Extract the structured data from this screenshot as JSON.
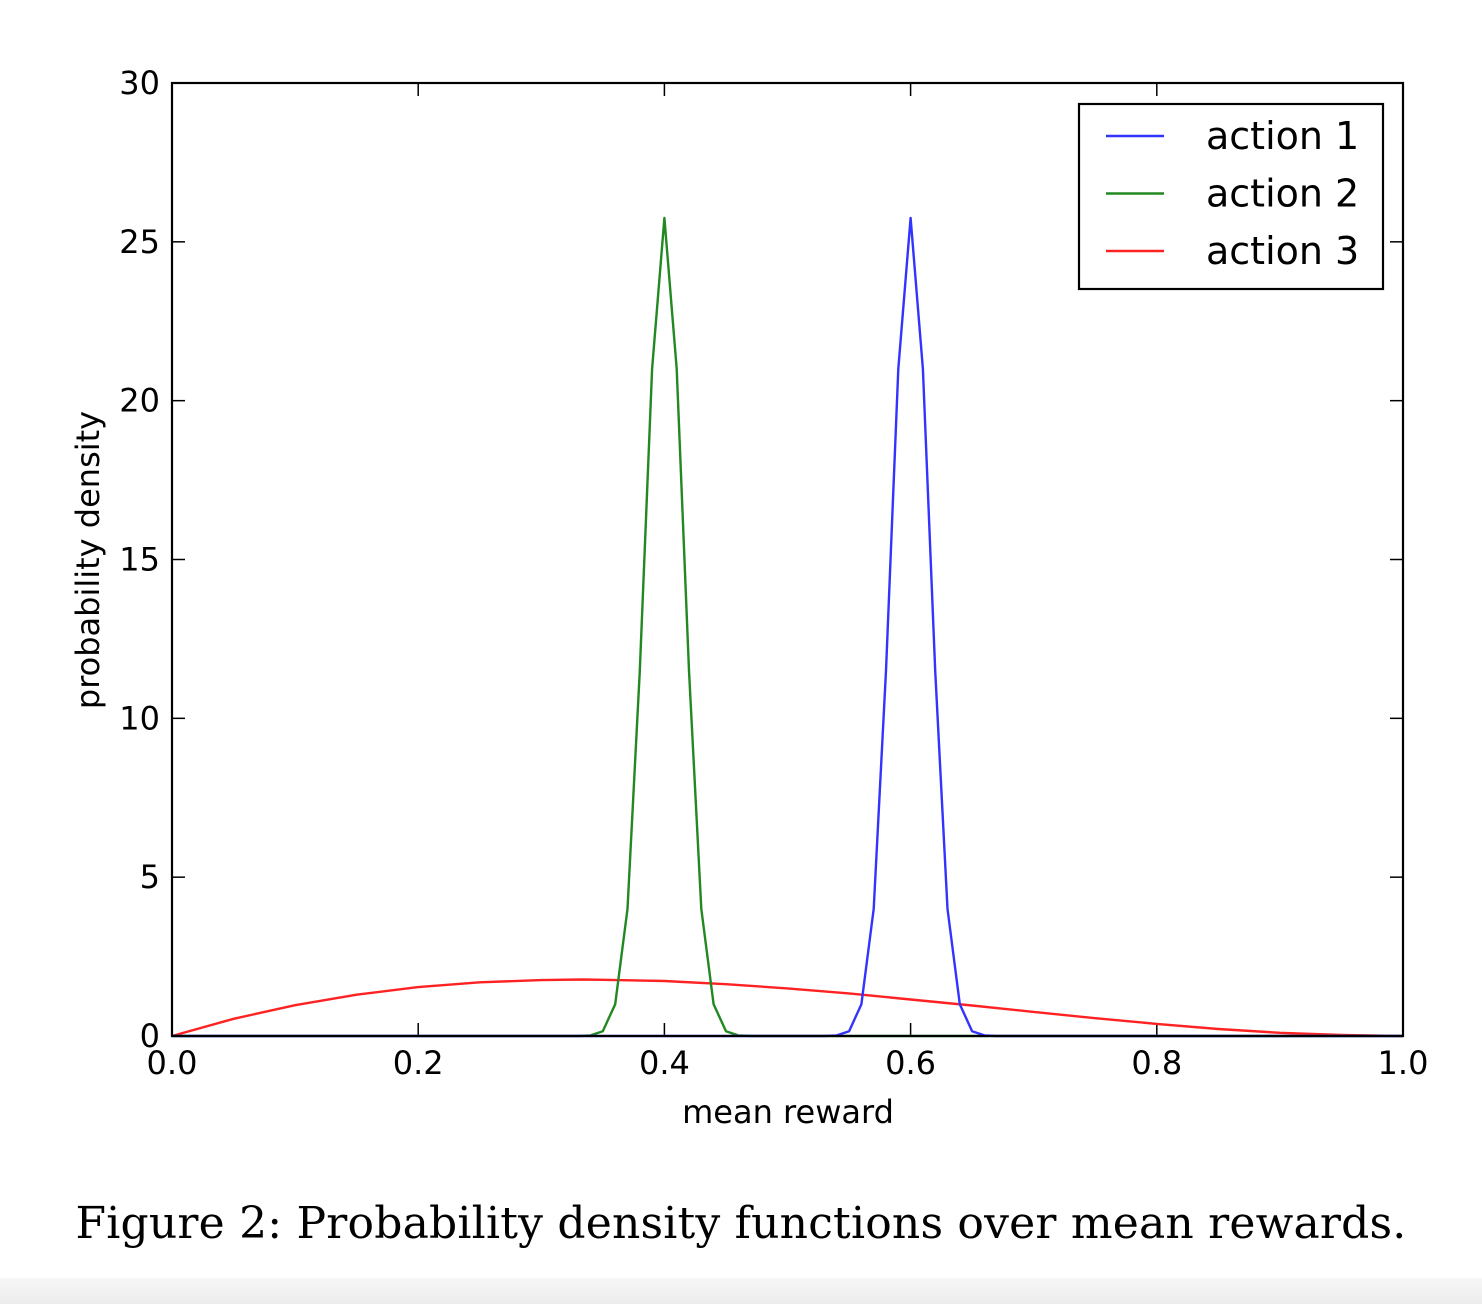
{
  "figure": {
    "caption": "Figure 2: Probability density functions over mean rewards."
  },
  "chart_data": {
    "type": "line",
    "title": "",
    "xlabel": "mean reward",
    "ylabel": "probability density",
    "xlim": [
      0.0,
      1.0
    ],
    "ylim": [
      0,
      30
    ],
    "x_ticks": [
      "0.0",
      "0.2",
      "0.4",
      "0.6",
      "0.8",
      "1.0"
    ],
    "y_ticks": [
      "0",
      "5",
      "10",
      "15",
      "20",
      "25",
      "30"
    ],
    "grid": false,
    "legend_position": "top-right",
    "series": [
      {
        "name": "action 1",
        "color": "#3333ff",
        "x": [
          0.0,
          0.53,
          0.54,
          0.55,
          0.56,
          0.57,
          0.58,
          0.59,
          0.6,
          0.61,
          0.62,
          0.63,
          0.64,
          0.65,
          0.66,
          0.67,
          1.0
        ],
        "y": [
          0,
          0,
          0.02,
          0.15,
          1.0,
          4.0,
          11.5,
          21.0,
          25.75,
          21.0,
          11.5,
          4.0,
          1.0,
          0.15,
          0.02,
          0,
          0
        ]
      },
      {
        "name": "action 2",
        "color": "#228822",
        "x": [
          0.0,
          0.33,
          0.34,
          0.35,
          0.36,
          0.37,
          0.38,
          0.39,
          0.4,
          0.41,
          0.42,
          0.43,
          0.44,
          0.45,
          0.46,
          0.47,
          1.0
        ],
        "y": [
          0,
          0,
          0.02,
          0.15,
          1.0,
          4.0,
          11.5,
          21.0,
          25.75,
          21.0,
          11.5,
          4.0,
          1.0,
          0.15,
          0.02,
          0,
          0
        ]
      },
      {
        "name": "action 3",
        "color": "#ff2222",
        "x": [
          0.0,
          0.05,
          0.1,
          0.15,
          0.2,
          0.25,
          0.3,
          0.333,
          0.35,
          0.4,
          0.45,
          0.5,
          0.55,
          0.6,
          0.65,
          0.7,
          0.75,
          0.8,
          0.85,
          0.9,
          0.95,
          1.0
        ],
        "y": [
          0,
          0.54,
          0.97,
          1.3,
          1.54,
          1.69,
          1.76,
          1.78,
          1.77,
          1.73,
          1.63,
          1.5,
          1.34,
          1.15,
          0.96,
          0.76,
          0.56,
          0.38,
          0.22,
          0.1,
          0.03,
          0
        ]
      }
    ]
  }
}
